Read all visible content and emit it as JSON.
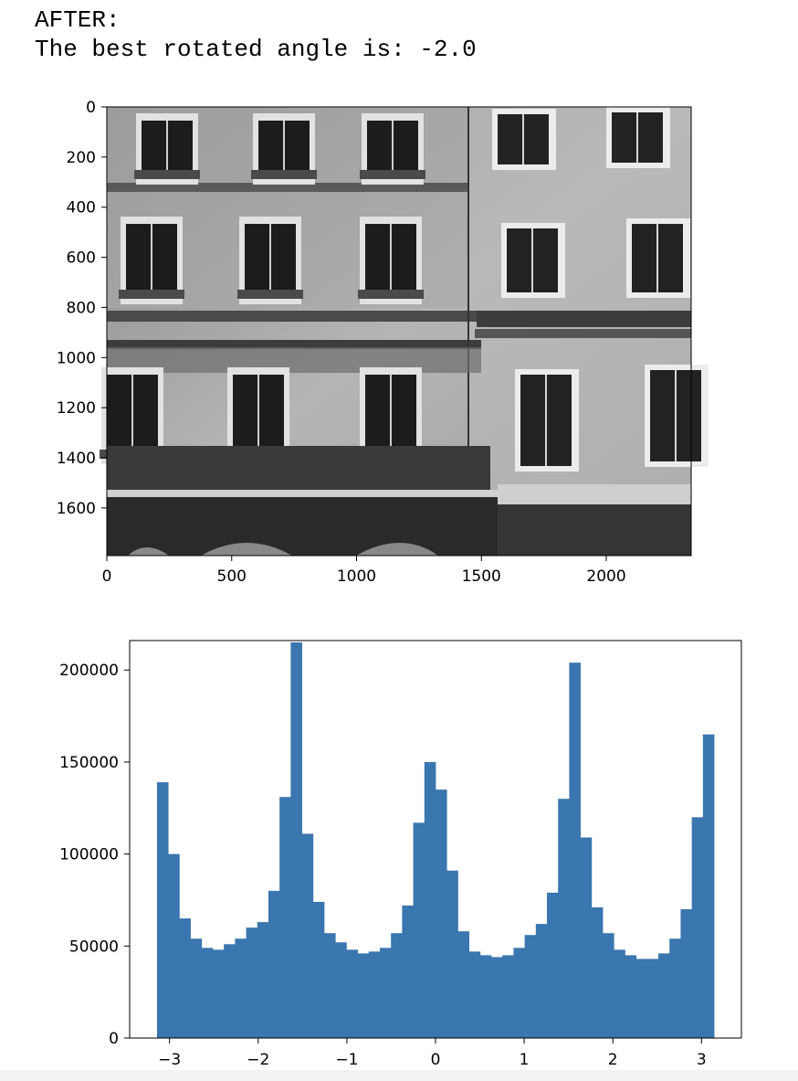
{
  "output": {
    "line1": "AFTER:",
    "line2": "The best rotated angle is: -2.0"
  },
  "chart_data": [
    {
      "type": "image",
      "image_content": "grayscale photo of a building facade (windows with balconies)",
      "xlim": [
        0,
        2340
      ],
      "ylim": [
        1790,
        0
      ],
      "xticks": [
        0,
        500,
        1000,
        1500,
        2000
      ],
      "xtick_labels": [
        "0",
        "500",
        "1000",
        "1500",
        "2000"
      ],
      "yticks": [
        0,
        200,
        400,
        600,
        800,
        1000,
        1200,
        1400,
        1600
      ],
      "ytick_labels": [
        "0",
        "200",
        "400",
        "600",
        "800",
        "1000",
        "1200",
        "1400",
        "1600"
      ]
    },
    {
      "type": "bar",
      "subtype": "histogram",
      "color": "#3a76af",
      "bin_start": -3.1416,
      "bin_end": 3.1416,
      "values": [
        139000,
        100000,
        65000,
        54000,
        49000,
        48000,
        51000,
        54000,
        60000,
        63000,
        80000,
        131000,
        215000,
        111000,
        74000,
        57000,
        52000,
        48000,
        46000,
        47000,
        49000,
        57000,
        72000,
        117000,
        150000,
        135000,
        91000,
        58000,
        47000,
        45000,
        44000,
        45000,
        49000,
        56000,
        62000,
        79000,
        130000,
        204000,
        109000,
        71000,
        57000,
        48000,
        45000,
        43000,
        43000,
        46000,
        54000,
        70000,
        120000,
        165000
      ],
      "xlim": [
        -3.45,
        3.45
      ],
      "ylim": [
        0,
        216000
      ],
      "xticks": [
        -3,
        -2,
        -1,
        0,
        1,
        2,
        3
      ],
      "xtick_labels": [
        "−3",
        "−2",
        "−1",
        "0",
        "1",
        "2",
        "3"
      ],
      "yticks": [
        0,
        50000,
        100000,
        150000,
        200000
      ],
      "ytick_labels": [
        "0",
        "50000",
        "100000",
        "150000",
        "200000"
      ]
    }
  ]
}
